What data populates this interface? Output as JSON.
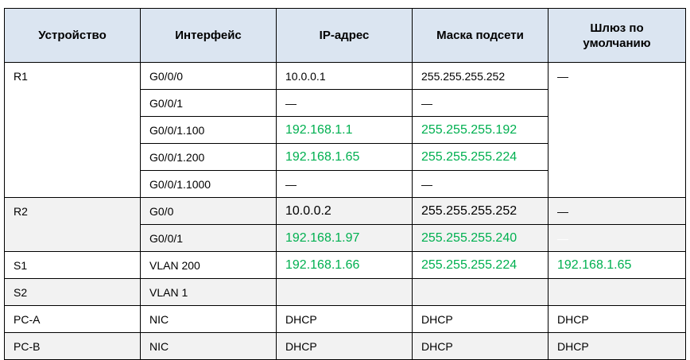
{
  "headers": [
    "Устройство",
    "Интерфейс",
    "IP-адрес",
    "Маска подсети",
    "Шлюз по умолчанию"
  ],
  "r1": {
    "device": "R1",
    "gateway": "—",
    "rows": [
      {
        "iface": "G0/0/0",
        "ip": "10.0.0.1",
        "mask": "255.255.255.252"
      },
      {
        "iface": "G0/0/1",
        "ip": "—",
        "mask": "—"
      },
      {
        "iface": "G0/0/1.100",
        "ip": "192.168.1.1",
        "mask": "255.255.255.192"
      },
      {
        "iface": "G0/0/1.200",
        "ip": "192.168.1.65",
        "mask": "255.255.255.224"
      },
      {
        "iface": "G0/0/1.1000",
        "ip": "—",
        "mask": "—"
      }
    ]
  },
  "r2": {
    "device": "R2",
    "rows": [
      {
        "iface": "G0/0",
        "ip": "10.0.0.2",
        "mask": "255.255.255.252",
        "gateway": "—"
      },
      {
        "iface": "G0/0/1",
        "ip": "192.168.1.97",
        "mask": "255.255.255.240",
        "gateway": "—"
      }
    ]
  },
  "s1": {
    "device": "S1",
    "iface": "VLAN 200",
    "ip": "192.168.1.66",
    "mask": "255.255.255.224",
    "gateway": "192.168.1.65"
  },
  "s2": {
    "device": "S2",
    "iface": "VLAN 1",
    "ip": "",
    "mask": "",
    "gateway": ""
  },
  "pca": {
    "device": "PC-A",
    "iface": "NIC",
    "ip": "DHCP",
    "mask": "DHCP",
    "gateway": "DHCP"
  },
  "pcb": {
    "device": "PC-B",
    "iface": "NIC",
    "ip": "DHCP",
    "mask": "DHCP",
    "gateway": "DHCP"
  },
  "colors": {
    "header_bg": "#dbe5f1",
    "shade_bg": "#f2f2f2",
    "green_text": "#00b050",
    "border": "#000000"
  }
}
